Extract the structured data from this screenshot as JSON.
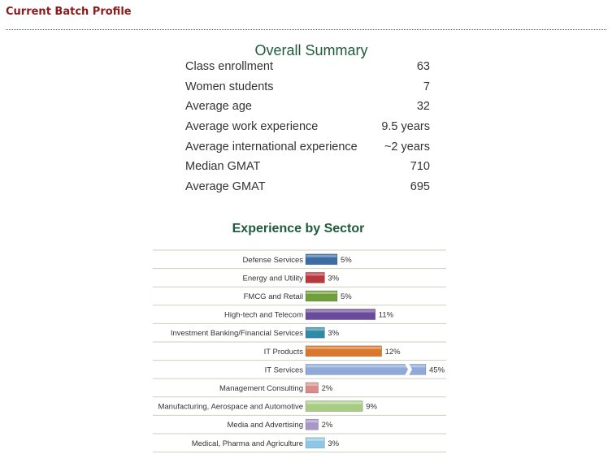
{
  "page": {
    "title": "Current Batch Profile"
  },
  "summary": {
    "title": "Overall Summary",
    "rows": [
      {
        "label": "Class enrollment",
        "value": "63"
      },
      {
        "label": "Women students",
        "value": "7"
      },
      {
        "label": "Average age",
        "value": "32"
      },
      {
        "label": "Average work experience",
        "value": "9.5 years"
      },
      {
        "label": "Average international experience",
        "value": "~2 years"
      },
      {
        "label": "Median GMAT",
        "value": "710"
      },
      {
        "label": "Average GMAT",
        "value": "695"
      }
    ]
  },
  "chart_data": {
    "type": "bar",
    "orientation": "horizontal",
    "title": "Experience by Sector",
    "xlabel": "",
    "ylabel": "",
    "unit": "%",
    "categories": [
      "Defense Services",
      "Energy and Utility",
      "FMCG and Retail",
      "High-tech and Telecom",
      "Investment Banking/Financial Services",
      "IT Products",
      "IT Services",
      "Management Consulting",
      "Manufacturing, Aerospace and Automotive",
      "Media and Advertising",
      "Medical, Pharma and Agriculture"
    ],
    "values": [
      5,
      3,
      5,
      11,
      3,
      12,
      45,
      2,
      9,
      2,
      3
    ],
    "data_labels": [
      "5%",
      "3%",
      "5%",
      "11%",
      "3%",
      "12%",
      "45%",
      "2%",
      "9%",
      "2%",
      "3%"
    ],
    "colors": [
      "#3c6ea5",
      "#b8383e",
      "#6e9f3a",
      "#6a4a9a",
      "#2e8aa5",
      "#d9772a",
      "#8fa9d8",
      "#d98c8c",
      "#a9cc84",
      "#a896c9",
      "#8ec7e3"
    ],
    "axis_break": {
      "on_category": "IT Services"
    },
    "grid": "row separators"
  }
}
